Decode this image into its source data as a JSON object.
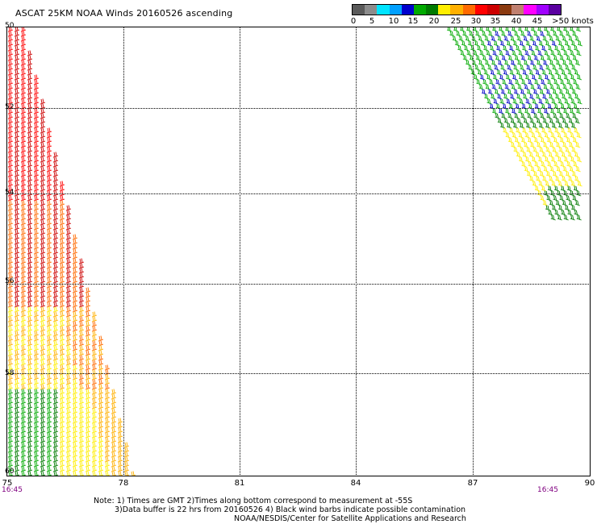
{
  "title": "ASCAT 25KM NOAA Winds 20160526 ascending",
  "legend": {
    "colors": [
      "#5a5a5a",
      "#8c8c8c",
      "#00e4ff",
      "#00a0ff",
      "#0000cc",
      "#00aa00",
      "#007a00",
      "#ffee00",
      "#ffb000",
      "#ff6a00",
      "#ff0000",
      "#cc0000",
      "#8b3a0f",
      "#c08070",
      "#ff00ff",
      "#a000ff",
      "#5a00a0"
    ],
    "labels": [
      "0",
      "5",
      "10",
      "15",
      "20",
      "25",
      "30",
      "35",
      "40",
      "45",
      ">50 knots"
    ]
  },
  "lat_labels": [
    "50",
    "52",
    "54",
    "56",
    "58",
    "60"
  ],
  "lon_labels": [
    "75",
    "78",
    "81",
    "84",
    "87",
    "90"
  ],
  "time_labels": {
    "left": "16:45",
    "right": "16:45"
  },
  "notes": {
    "line1": "Note: 1) Times are GMT 2)Times along bottom correspond to measurement at -55S",
    "line2": "3)Data buffer is 22 hrs from 20160526 4) Black wind barbs indicate possible contamination",
    "line3": "NOAA/NESDIS/Center for Satellite Applications and Research"
  },
  "swaths": [
    {
      "name": "west-swath",
      "colors": [
        "#ff0000",
        "#cc0000",
        "#ff6a00",
        "#ffb000",
        "#ffee00",
        "#00aa00",
        "#007a00"
      ]
    },
    {
      "name": "east-swath",
      "colors": [
        "#00aa00",
        "#0000cc",
        "#007a00",
        "#ffee00"
      ]
    }
  ]
}
